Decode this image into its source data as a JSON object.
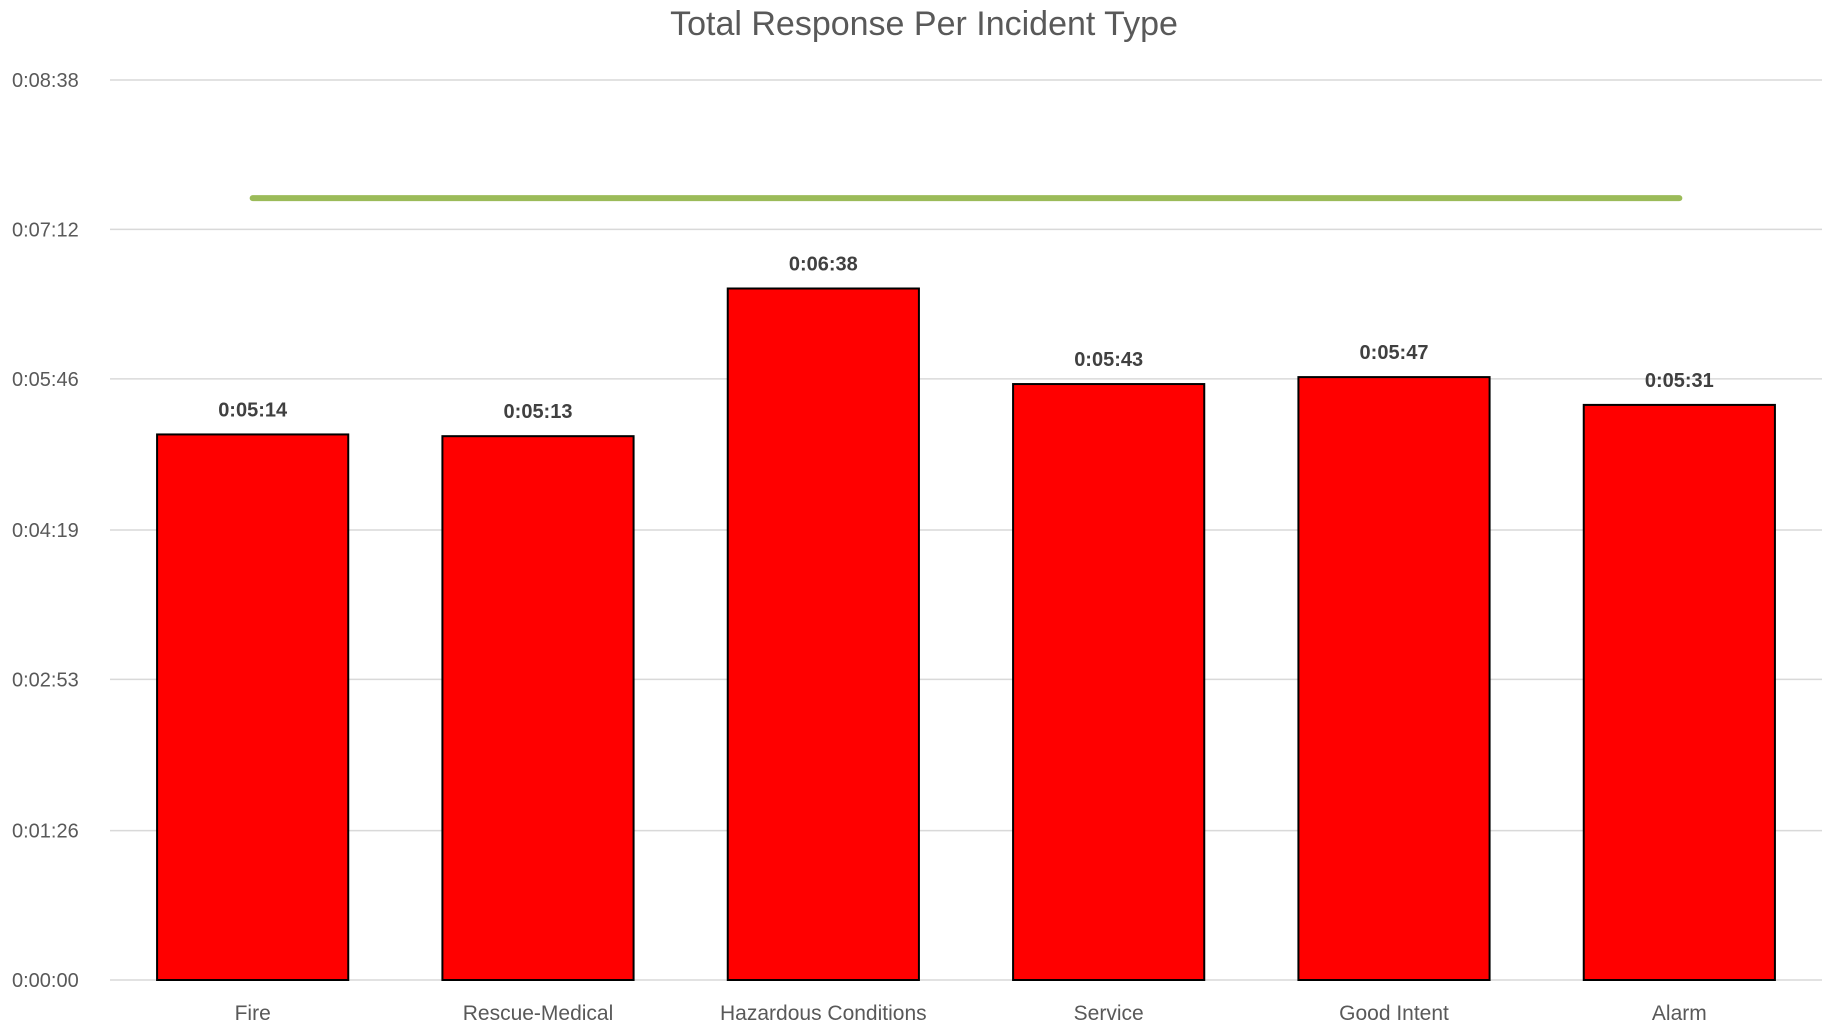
{
  "chart_data": {
    "type": "bar",
    "title": "Total Response Per Incident Type",
    "xlabel": "",
    "ylabel": "",
    "categories": [
      "Fire",
      "Rescue-Medical",
      "Hazardous Conditions",
      "Service",
      "Good Intent",
      "Alarm"
    ],
    "series": [
      {
        "values": [
          "0:05:14",
          "0:05:13",
          "0:06:38",
          "0:05:43",
          "0:05:47",
          "0:05:31"
        ],
        "color": "#ff0000",
        "border_color": "#000000"
      }
    ],
    "reference_line": {
      "value": "0:07:30",
      "color": "#9bbb59"
    },
    "ylim": [
      "0:00:00",
      "0:08:38"
    ],
    "y_ticks": [
      "0:00:00",
      "0:01:26",
      "0:02:53",
      "0:04:19",
      "0:05:46",
      "0:07:12",
      "0:08:38"
    ],
    "grid": true,
    "legend": "none",
    "data_labels": true
  }
}
